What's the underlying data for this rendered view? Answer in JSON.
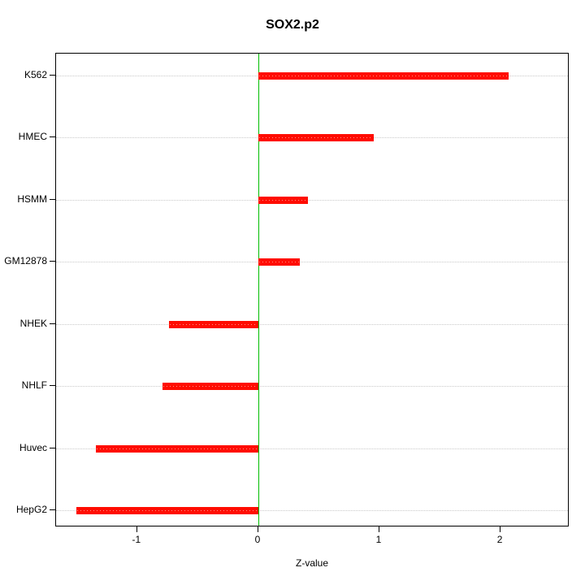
{
  "chart_data": {
    "type": "bar",
    "orientation": "horizontal",
    "title": "SOX2.p2",
    "xlabel": "Z-value",
    "categories_top_to_bottom": [
      "K562",
      "HMEC",
      "HSMM",
      "GM12878",
      "NHEK",
      "NHLF",
      "Huvec",
      "HepG2"
    ],
    "values": [
      2.07,
      0.95,
      0.41,
      0.34,
      -0.74,
      -0.79,
      -1.34,
      -1.5
    ],
    "xlim": [
      -1.67,
      2.57
    ],
    "xticks": [
      -1,
      0,
      1,
      2
    ],
    "grid": "dotted-horizontal-per-category",
    "legend": "none",
    "bar_color": "#ff0c00",
    "zero_line_color": "#00bd00",
    "grid_color": "#c9c9c9"
  }
}
